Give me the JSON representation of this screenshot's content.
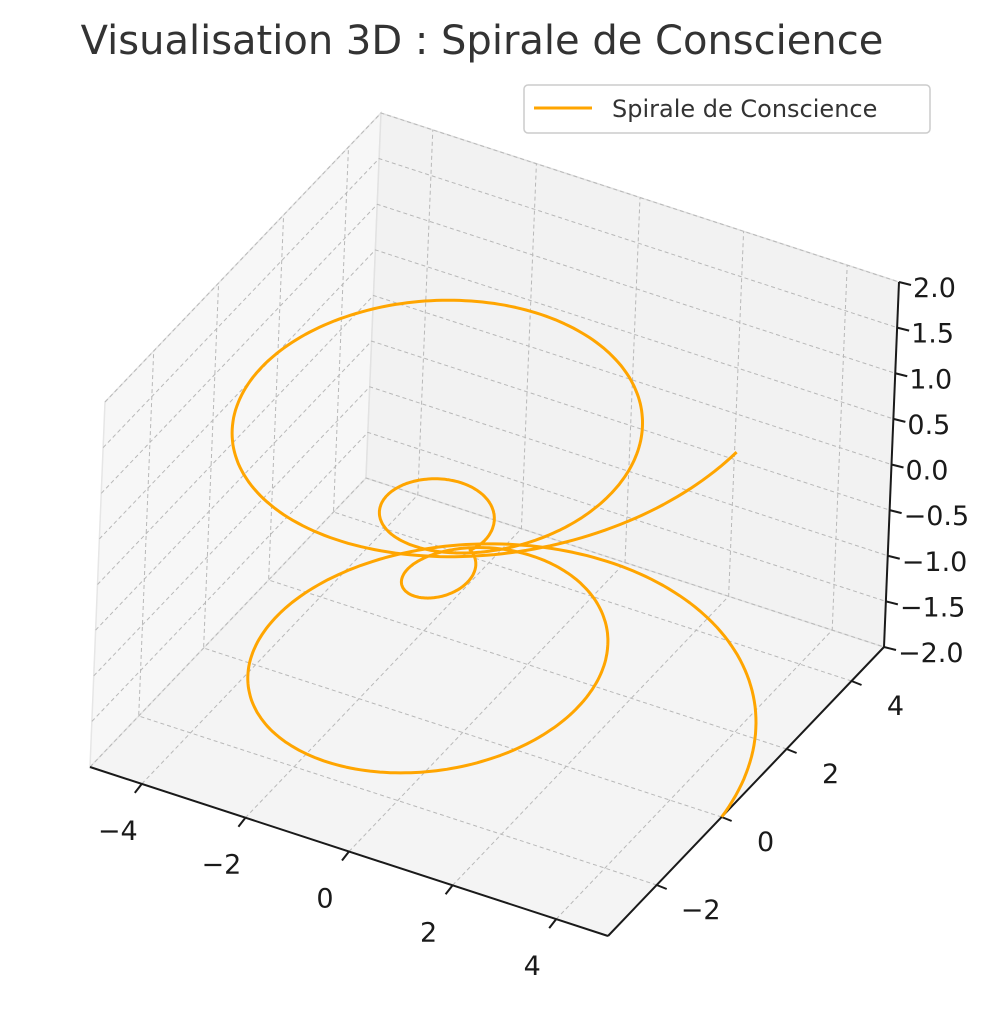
{
  "chart_data": {
    "type": "line",
    "projection": "3d",
    "title": "Visualisation 3D : Spirale de Conscience",
    "xlabel": "",
    "ylabel": "",
    "zlabel": "",
    "legend": {
      "placement": "top-right",
      "entries": [
        "Spirale de Conscience"
      ]
    },
    "grid": true,
    "xlim": [
      -5,
      5
    ],
    "ylim": [
      -3.5,
      5
    ],
    "zlim": [
      -2,
      2
    ],
    "x_ticks": [
      -4,
      -2,
      0,
      2,
      4
    ],
    "y_ticks": [
      -2,
      0,
      2,
      4
    ],
    "z_ticks": [
      -2.0,
      -1.5,
      -1.0,
      -0.5,
      0.0,
      0.5,
      1.0,
      1.5,
      2.0
    ],
    "x_tick_labels": [
      "−4",
      "−2",
      "0",
      "2",
      "4"
    ],
    "y_tick_labels": [
      "−2",
      "0",
      "2",
      "4"
    ],
    "z_tick_labels": [
      "−2.0",
      "−1.5",
      "−1.0",
      "−0.5",
      "0.0",
      "0.5",
      "1.0",
      "1.5",
      "2.0"
    ],
    "series": [
      {
        "name": "Spirale de Conscience",
        "color": "#FFA500",
        "equation": "x = r cos t, y = r sin t, z = t / (2π), r = |z| · 2.5",
        "t_range": [
          -12.566,
          12.566
        ],
        "z_range": [
          -2,
          2
        ],
        "max_radius": 5
      }
    ]
  }
}
